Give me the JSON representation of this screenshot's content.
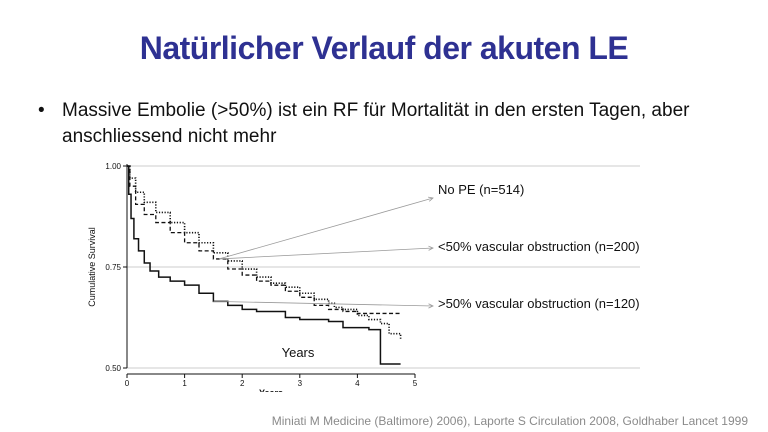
{
  "slide": {
    "title": "Natürlicher Verlauf der akuten LE",
    "bullet_marker": "•",
    "bullet_text": "Massive Embolie (>50%) ist ein RF für Mortalität in den ersten Tagen, aber anschliessend nicht mehr",
    "citation": "Miniati M Medicine (Baltimore) 2006), Laporte S Circulation 2008, Goldhaber Lancet 1999"
  },
  "chart_data": {
    "type": "line",
    "ylabel": "Cumulative Survival",
    "xlabel": "Years",
    "xlabel_inside": "Years",
    "xlim": [
      0,
      5
    ],
    "ylim": [
      0.5,
      1.0
    ],
    "x_ticks": [
      "0",
      "1",
      "2",
      "3",
      "4",
      "5"
    ],
    "y_ticks": [
      "1.00",
      "0.75",
      "0.50"
    ],
    "grid": "horizontal reference lines at 1.00, 0.75, 0.50",
    "series": [
      {
        "name": "No PE (n=514)",
        "style": "dotted",
        "x": [
          0,
          0.05,
          0.15,
          0.3,
          0.5,
          0.75,
          1.0,
          1.25,
          1.5,
          1.75,
          2.0,
          2.25,
          2.5,
          2.75,
          3.0,
          3.25,
          3.5,
          3.6,
          3.75,
          4.0,
          4.2,
          4.4,
          4.55,
          4.75
        ],
        "y": [
          1.0,
          0.97,
          0.935,
          0.91,
          0.885,
          0.86,
          0.835,
          0.81,
          0.785,
          0.765,
          0.745,
          0.725,
          0.71,
          0.7,
          0.685,
          0.67,
          0.66,
          0.65,
          0.645,
          0.63,
          0.62,
          0.61,
          0.585,
          0.57
        ]
      },
      {
        "name": "<50% vascular obstruction (n=200)",
        "style": "dashed",
        "x": [
          0,
          0.05,
          0.15,
          0.3,
          0.5,
          0.75,
          1.0,
          1.25,
          1.5,
          1.75,
          2.0,
          2.25,
          2.5,
          2.75,
          3.0,
          3.25,
          3.5,
          3.75,
          4.0,
          4.25,
          4.5,
          4.75
        ],
        "y": [
          1.0,
          0.95,
          0.905,
          0.88,
          0.86,
          0.835,
          0.81,
          0.79,
          0.77,
          0.745,
          0.73,
          0.715,
          0.705,
          0.69,
          0.675,
          0.655,
          0.645,
          0.64,
          0.635,
          0.635,
          0.635,
          0.635
        ]
      },
      {
        "name": ">50% vascular obstruction (n=120)",
        "style": "solid",
        "x": [
          0,
          0.03,
          0.07,
          0.12,
          0.2,
          0.3,
          0.4,
          0.55,
          0.75,
          1.0,
          1.25,
          1.5,
          1.75,
          2.0,
          2.25,
          2.5,
          2.75,
          3.0,
          3.25,
          3.5,
          3.75,
          4.0,
          4.2,
          4.35,
          4.4,
          4.55,
          4.75
        ],
        "y": [
          1.0,
          0.93,
          0.87,
          0.82,
          0.79,
          0.76,
          0.74,
          0.725,
          0.715,
          0.705,
          0.685,
          0.665,
          0.655,
          0.645,
          0.64,
          0.64,
          0.625,
          0.62,
          0.62,
          0.615,
          0.6,
          0.6,
          0.595,
          0.595,
          0.51,
          0.51,
          0.51
        ]
      }
    ],
    "annotations": [
      {
        "label": "No PE (n=514)",
        "points_to_series": 0
      },
      {
        "label": "<50% vascular obstruction (n=200)",
        "points_to_series": 1
      },
      {
        "label": ">50% vascular obstruction (n=120)",
        "points_to_series": 2
      }
    ]
  }
}
